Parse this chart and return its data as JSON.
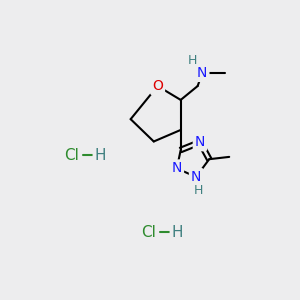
{
  "bg_color": "#ededee",
  "atom_colors": {
    "C": "#000000",
    "N": "#1a1aff",
    "O": "#dd0000",
    "H": "#408080",
    "Cl": "#2e8b2e"
  },
  "bond_color": "#000000",
  "bond_width": 1.5
}
